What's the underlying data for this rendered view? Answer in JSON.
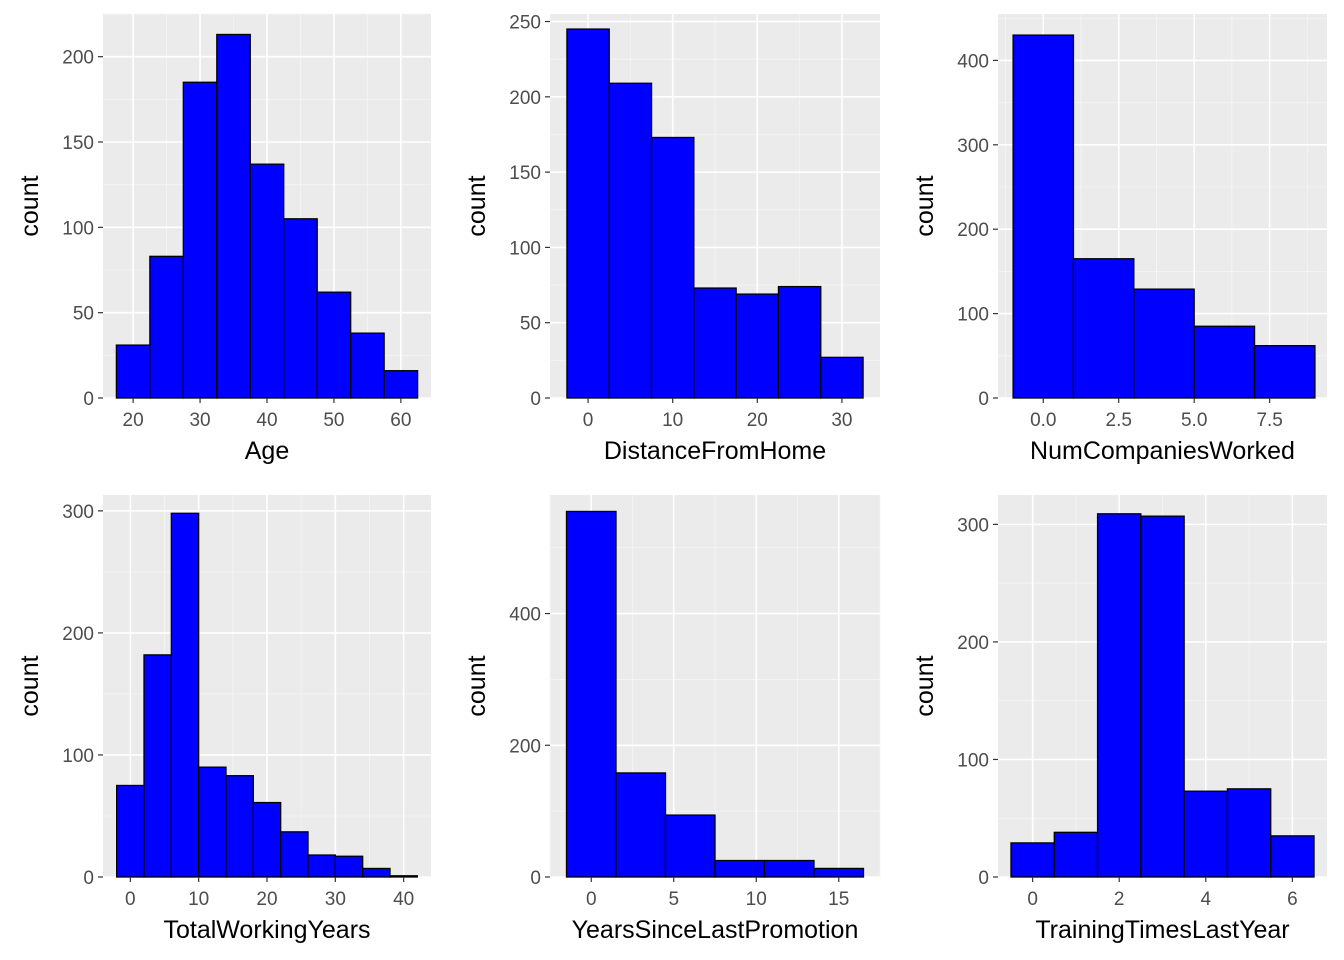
{
  "colors": {
    "bar_fill": "#0000ff",
    "bar_stroke": "#000000",
    "panel": "#ebebeb",
    "grid": "#ffffff"
  },
  "chart_data": [
    {
      "type": "bar",
      "xlabel": "Age",
      "ylabel": "count",
      "bin_edges": [
        17.5,
        22.5,
        27.5,
        32.5,
        37.5,
        42.5,
        47.5,
        52.5,
        57.5,
        62.5
      ],
      "values": [
        31,
        83,
        185,
        213,
        137,
        105,
        62,
        38,
        16
      ],
      "xlim": [
        15.5,
        64.5
      ],
      "ylim": [
        0,
        225
      ],
      "xticks": [
        20,
        30,
        40,
        50,
        60
      ],
      "xtick_labels": [
        "20",
        "30",
        "40",
        "50",
        "60"
      ],
      "yticks": [
        0,
        50,
        100,
        150,
        200
      ],
      "ytick_labels": [
        "0",
        "50",
        "100",
        "150",
        "200"
      ],
      "grid": true
    },
    {
      "type": "bar",
      "xlabel": "DistanceFromHome",
      "ylabel": "count",
      "bin_edges": [
        -2.5,
        2.5,
        7.5,
        12.5,
        17.5,
        22.5,
        27.5,
        32.5
      ],
      "values": [
        245,
        209,
        173,
        73,
        69,
        74,
        27
      ],
      "xlim": [
        -4.5,
        34.5
      ],
      "ylim": [
        0,
        255
      ],
      "xticks": [
        0,
        10,
        20,
        30
      ],
      "xtick_labels": [
        "0",
        "10",
        "20",
        "30"
      ],
      "yticks": [
        0,
        50,
        100,
        150,
        200,
        250
      ],
      "ytick_labels": [
        "0",
        "50",
        "100",
        "150",
        "200",
        "250"
      ],
      "grid": true
    },
    {
      "type": "bar",
      "xlabel": "NumCompaniesWorked",
      "ylabel": "count",
      "bin_edges": [
        -1,
        1,
        3,
        5,
        7,
        9
      ],
      "values": [
        430,
        165,
        129,
        85,
        62
      ],
      "xlim": [
        -1.5,
        9.4
      ],
      "ylim": [
        0,
        455
      ],
      "xticks": [
        0,
        2.5,
        5,
        7.5
      ],
      "xtick_labels": [
        "0.0",
        "2.5",
        "5.0",
        "7.5"
      ],
      "yticks": [
        0,
        100,
        200,
        300,
        400
      ],
      "ytick_labels": [
        "0",
        "100",
        "200",
        "300",
        "400"
      ],
      "grid": true
    },
    {
      "type": "bar",
      "xlabel": "TotalWorkingYears",
      "ylabel": "count",
      "bin_edges": [
        -2,
        2,
        6,
        10,
        14,
        18,
        22,
        26,
        30,
        34,
        38,
        42
      ],
      "values": [
        75,
        182,
        298,
        90,
        83,
        61,
        37,
        18,
        17,
        7,
        1
      ],
      "xlim": [
        -4,
        44
      ],
      "ylim": [
        0,
        313
      ],
      "xticks": [
        0,
        10,
        20,
        30,
        40
      ],
      "xtick_labels": [
        "0",
        "10",
        "20",
        "30",
        "40"
      ],
      "yticks": [
        0,
        100,
        200,
        300
      ],
      "ytick_labels": [
        "0",
        "100",
        "200",
        "300"
      ],
      "grid": true
    },
    {
      "type": "bar",
      "xlabel": "YearsSinceLastPromotion",
      "ylabel": "count",
      "bin_edges": [
        -1.5,
        1.5,
        4.5,
        7.5,
        10.5,
        13.5,
        16.5
      ],
      "values": [
        555,
        158,
        94,
        25,
        25,
        13
      ],
      "xlim": [
        -2.5,
        17.5
      ],
      "ylim": [
        0,
        580
      ],
      "xticks": [
        0,
        5,
        10,
        15
      ],
      "xtick_labels": [
        "0",
        "5",
        "10",
        "15"
      ],
      "yticks": [
        0,
        200,
        400
      ],
      "ytick_labels": [
        "0",
        "200",
        "400"
      ],
      "grid": true
    },
    {
      "type": "bar",
      "xlabel": "TrainingTimesLastYear",
      "ylabel": "count",
      "bin_edges": [
        -0.5,
        0.5,
        1.5,
        2.5,
        3.5,
        4.5,
        5.5,
        6.5
      ],
      "values": [
        29,
        38,
        309,
        307,
        73,
        75,
        35
      ],
      "xlim": [
        -0.8,
        6.8
      ],
      "ylim": [
        0,
        325
      ],
      "xticks": [
        0,
        2,
        4,
        6
      ],
      "xtick_labels": [
        "0",
        "2",
        "4",
        "6"
      ],
      "yticks": [
        0,
        100,
        200,
        300
      ],
      "ytick_labels": [
        "0",
        "100",
        "200",
        "300"
      ],
      "grid": true
    }
  ]
}
